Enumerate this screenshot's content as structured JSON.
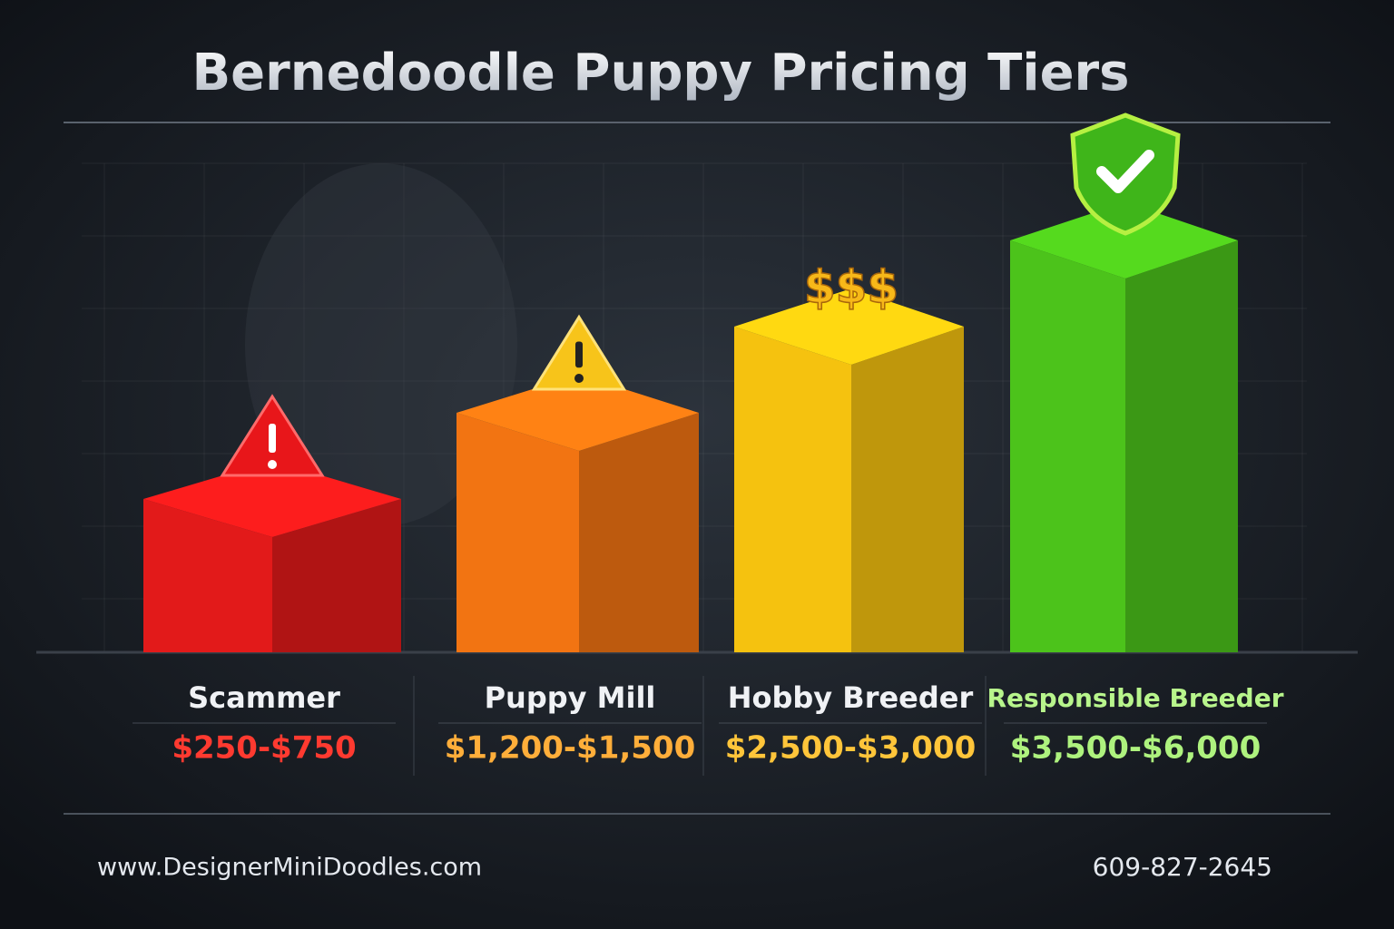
{
  "header": {
    "title": "Bernedoodle Puppy Pricing Tiers"
  },
  "tiers": [
    {
      "name": "Scammer",
      "price": "$250-$750",
      "color": "#e21a1a"
    },
    {
      "name": "Puppy Mill",
      "price": "$1,200-$1,500",
      "color": "#f27412"
    },
    {
      "name": "Hobby Breeder",
      "price": "$2,500-$3,000",
      "color": "#f5c20f",
      "badge": "$$$"
    },
    {
      "name": "Responsible Breeder",
      "price": "$3,500-$6,000",
      "color": "#4cc31b"
    }
  ],
  "footer": {
    "website": "www.DesignerMiniDoodles.com",
    "phone": "609-827-2645"
  }
}
